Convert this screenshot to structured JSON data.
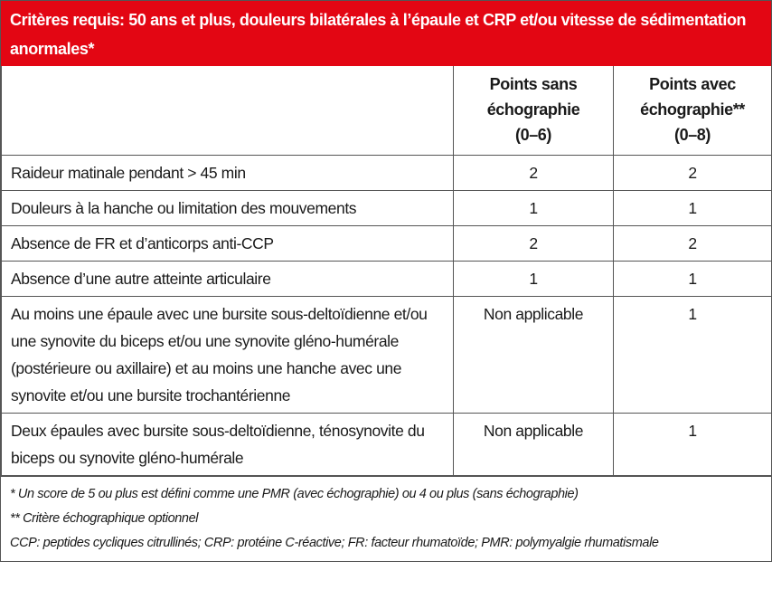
{
  "title": "Critères requis: 50 ans et plus, douleurs bilatérales à l’épaule et CRP et/ou vitesse de sédimentation anormales*",
  "columns": [
    {
      "line1": "Points sans",
      "line2": "échographie",
      "line3": "(0–6)"
    },
    {
      "line1": "Points avec",
      "line2": "échographie**",
      "line3": "(0–8)"
    }
  ],
  "rows": [
    {
      "criterion": "Raideur matinale pendant > 45 min",
      "without": "2",
      "with": "2"
    },
    {
      "criterion": "Douleurs à la hanche ou limitation des mouvements",
      "without": "1",
      "with": "1"
    },
    {
      "criterion": "Absence de FR et d’anticorps anti-CCP",
      "without": "2",
      "with": "2"
    },
    {
      "criterion": "Absence d’une autre atteinte articulaire",
      "without": "1",
      "with": "1"
    },
    {
      "criterion": "Au moins une épaule avec une bursite sous-deltoï­dienne et/ou une synovite du biceps et/ou une synovite gléno-humérale (postérieure ou axillaire) et au moins une hanche avec une synovite et/ou une bursite trochantérienne",
      "without": "Non applicable",
      "with": "1"
    },
    {
      "criterion": "Deux épaules avec bursite sous-deltoïdienne, ténosyno­vite du biceps ou synovite gléno-humérale",
      "without": "Non applicable",
      "with": "1"
    }
  ],
  "footnotes": [
    "* Un score de 5 ou plus est défini comme une PMR (avec échographie) ou 4 ou plus (sans échographie)",
    "** Critère échographique optionnel",
    "CCP: peptides cycliques citrullinés; CRP: protéine C-réactive; FR: facteur rhumatoïde; PMR: polymyalgie rhumatismale"
  ],
  "colors": {
    "header_bg": "#e30613",
    "header_text": "#ffffff",
    "border": "#555555"
  }
}
